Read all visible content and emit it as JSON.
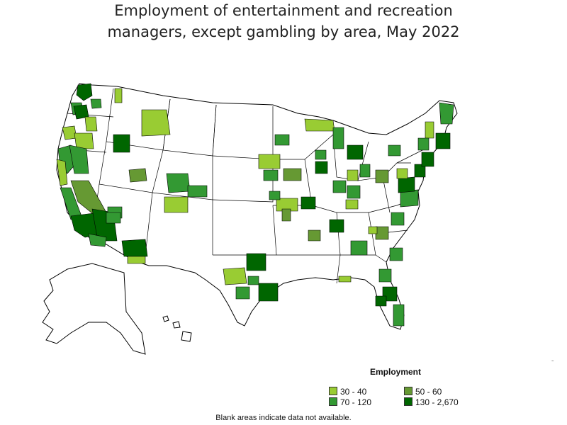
{
  "title": {
    "line1": "Employment of entertainment and recreation",
    "line2": "managers, except gambling by area, May 2022"
  },
  "legend": {
    "title": "Employment",
    "items": [
      {
        "label": "30 - 40",
        "color": "#99cc33"
      },
      {
        "label": "50 - 60",
        "color": "#669933"
      },
      {
        "label": "70 - 120",
        "color": "#339933"
      },
      {
        "label": "130 - 2,670",
        "color": "#006600"
      }
    ]
  },
  "footnote": "Blank areas indicate data not available.",
  "colors": {
    "background": "#ffffff",
    "border": "#000000",
    "c1": "#99cc33",
    "c2": "#669933",
    "c3": "#339933",
    "c4": "#006600"
  }
}
